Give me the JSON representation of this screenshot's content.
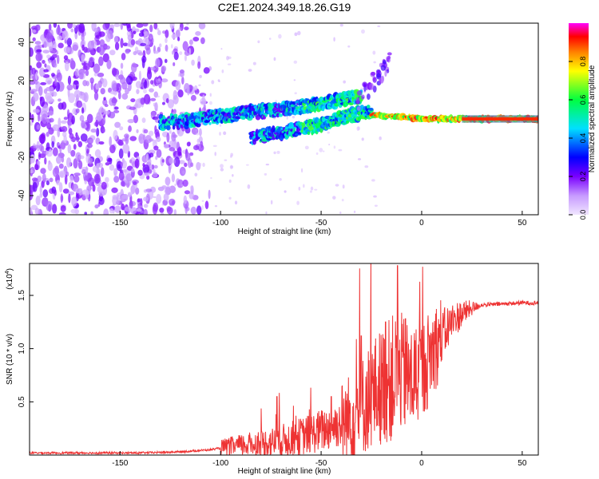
{
  "title": "C2E1.2024.349.18.26.G19",
  "chart_data": [
    {
      "type": "heatmap",
      "xlabel": "Height of straight line (km)",
      "ylabel": "Frequency (Hz)",
      "xlim": [
        -195,
        58
      ],
      "ylim": [
        -50,
        50
      ],
      "x_ticks": [
        -150,
        -100,
        -50,
        0,
        50
      ],
      "y_ticks": [
        -40,
        -20,
        0,
        20,
        40
      ],
      "grid": false,
      "colorbar": {
        "label": "Normalized spectral amplitude",
        "range": [
          0,
          1
        ],
        "ticks": [
          0.0,
          0.2,
          0.4,
          0.6,
          0.8
        ],
        "colormap": [
          "#f0e6ff",
          "#7a00ff",
          "#0000ff",
          "#00e0ff",
          "#00ff40",
          "#ffff00",
          "#ff8000",
          "#ff0000",
          "#ff00ff"
        ]
      },
      "ridges": [
        {
          "x": [
            -130,
            -110,
            -90,
            -70,
            -50,
            -40,
            -30
          ],
          "y": [
            -2,
            0,
            3,
            5,
            8,
            10,
            12
          ]
        },
        {
          "x": [
            -85,
            -70,
            -50,
            -35,
            -25
          ],
          "y": [
            -10,
            -7,
            -3,
            2,
            4
          ]
        },
        {
          "x": [
            -25,
            -10,
            0,
            10,
            20,
            58
          ],
          "y": [
            2,
            1,
            0,
            0,
            0,
            0
          ]
        }
      ]
    },
    {
      "type": "line",
      "xlabel": "Height of straight line (km)",
      "ylabel": "SNR (10 * v/v)",
      "y_multiplier_label": "(x10",
      "y_multiplier_exp": "4",
      "xlim": [
        -195,
        58
      ],
      "ylim": [
        0,
        1.8
      ],
      "x_ticks": [
        -150,
        -100,
        -50,
        0,
        50
      ],
      "y_ticks": [
        0.5,
        1.0,
        1.5
      ],
      "grid": false,
      "color": "#ee3333",
      "series": [
        {
          "x": [
            -195,
            -180,
            -160,
            -140,
            -120,
            -105,
            -95,
            -85,
            -75,
            -65,
            -55,
            -45,
            -38,
            -32,
            -28,
            -24,
            -20,
            -16,
            -13,
            -10,
            -6,
            -2,
            2,
            6,
            10,
            15,
            20,
            25,
            30,
            40,
            50,
            58
          ],
          "y": [
            0.02,
            0.02,
            0.02,
            0.02,
            0.03,
            0.05,
            0.08,
            0.1,
            0.12,
            0.15,
            0.2,
            0.26,
            0.32,
            0.4,
            0.5,
            0.58,
            0.65,
            0.7,
            0.75,
            0.78,
            0.7,
            0.75,
            0.85,
            1.0,
            1.12,
            1.25,
            1.33,
            1.38,
            1.41,
            1.42,
            1.43,
            1.43
          ]
        }
      ],
      "spikes": [
        {
          "x": -12,
          "y": 1.78
        },
        {
          "x": -30,
          "y": 1.12
        },
        {
          "x": -45,
          "y": 0.55
        },
        {
          "x": -72,
          "y": 0.55
        },
        {
          "x": -18,
          "y": 1.25
        },
        {
          "x": -8,
          "y": 1.28
        }
      ]
    }
  ]
}
